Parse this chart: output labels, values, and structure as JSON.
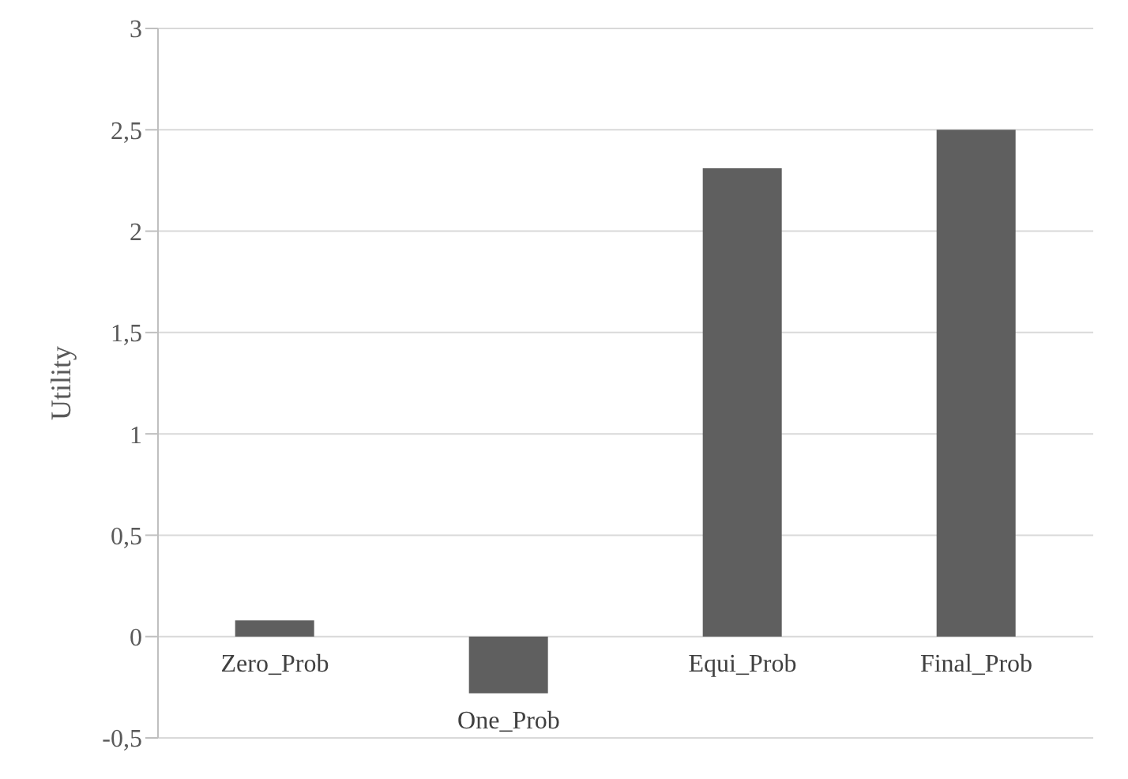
{
  "chart_data": {
    "type": "bar",
    "ylabel": "Utility",
    "categories": [
      "Zero_Prob",
      "One_Prob",
      "Equi_Prob",
      "Final_Prob"
    ],
    "values": [
      0.08,
      -0.28,
      2.31,
      2.5
    ],
    "color": "#5f5f5f",
    "ylim": [
      -0.5,
      3
    ],
    "yticks": [
      {
        "value": -0.5,
        "label": "-0,5"
      },
      0,
      {
        "value": 0.5,
        "label": "0,5"
      },
      1,
      {
        "value": 1.5,
        "label": "1,5"
      },
      2,
      {
        "value": 2.5,
        "label": "2,5"
      },
      3
    ],
    "grid": "y"
  }
}
